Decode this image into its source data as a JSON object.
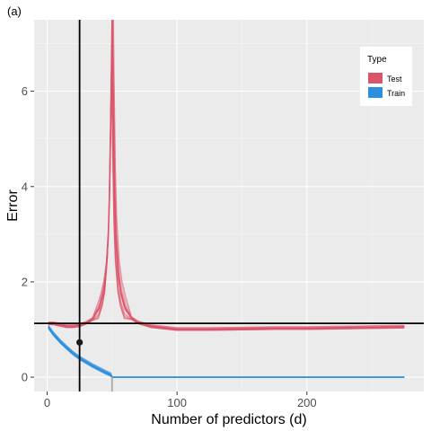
{
  "chart_data": {
    "type": "line",
    "panel_tag": "(a)",
    "xlabel": "Number of predictors (d)",
    "ylabel": "Error",
    "xlim": [
      -10,
      290
    ],
    "ylim": [
      -0.3,
      7.5
    ],
    "xticks": [
      0,
      100,
      200
    ],
    "yticks": [
      0,
      2,
      4,
      6
    ],
    "grid": true,
    "legend": {
      "title": "Type",
      "placement": "top-right",
      "entries": [
        {
          "label": "Test",
          "color": "#dc5469"
        },
        {
          "label": "Train",
          "color": "#2b8fe0"
        }
      ]
    },
    "reference_lines": {
      "vertical_black_x": 25,
      "horizontal_black_y": 1.13,
      "vertical_gray_x": 50
    },
    "highlight_point": {
      "x": 25,
      "y": 0.73
    },
    "series": [
      {
        "name": "Test",
        "color": "#dc5469",
        "x": [
          1,
          5,
          10,
          15,
          20,
          25,
          30,
          35,
          40,
          43,
          45,
          47,
          48,
          49,
          50,
          51,
          52,
          53,
          55,
          57,
          60,
          65,
          70,
          80,
          90,
          100,
          125,
          150,
          175,
          200,
          225,
          250,
          275
        ],
        "y": [
          1.13,
          1.13,
          1.1,
          1.07,
          1.07,
          1.09,
          1.14,
          1.22,
          1.45,
          1.75,
          2.1,
          2.9,
          3.8,
          5.5,
          7.5,
          5.5,
          3.8,
          2.9,
          2.1,
          1.75,
          1.45,
          1.24,
          1.15,
          1.07,
          1.04,
          1.01,
          1.01,
          1.02,
          1.03,
          1.03,
          1.04,
          1.05,
          1.06
        ]
      },
      {
        "name": "Train",
        "color": "#2b8fe0",
        "x": [
          1,
          5,
          10,
          15,
          20,
          25,
          30,
          35,
          40,
          45,
          49,
          50,
          60,
          100,
          150,
          200,
          250,
          275
        ],
        "y": [
          1.05,
          0.9,
          0.75,
          0.62,
          0.5,
          0.4,
          0.32,
          0.24,
          0.17,
          0.1,
          0.05,
          0.0,
          0.0,
          0.0,
          0.0,
          0.0,
          0.0,
          0.0
        ]
      }
    ]
  }
}
